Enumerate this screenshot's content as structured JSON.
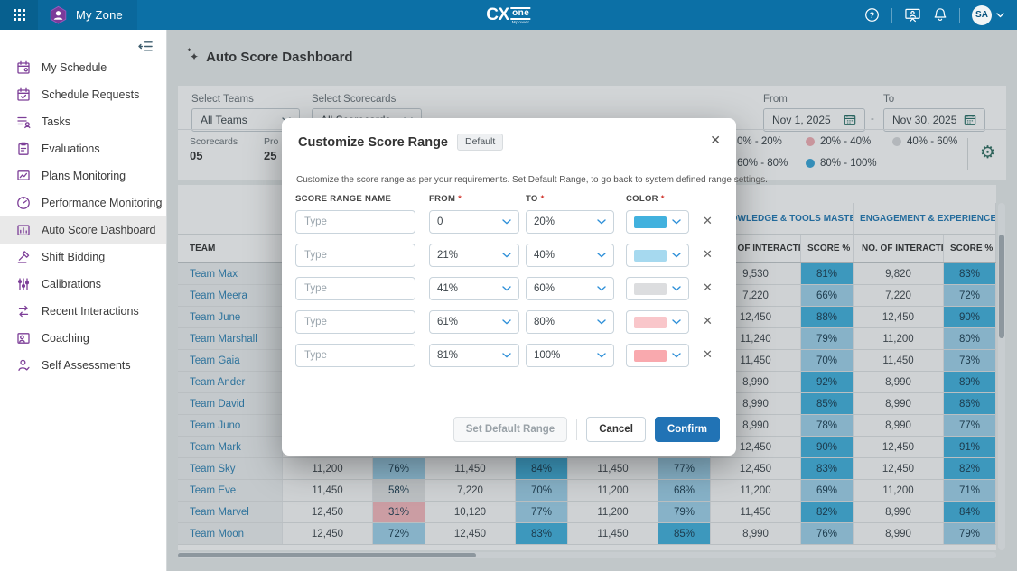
{
  "topbar": {
    "app_name": "My Zone",
    "logo": {
      "cx": "CX",
      "one": "one",
      "sub": "Mpower"
    },
    "avatar_initials": "SA"
  },
  "sidebar": {
    "active_index": 6,
    "items": [
      {
        "id": "my-schedule",
        "icon": "calendar-user-icon",
        "label": "My Schedule"
      },
      {
        "id": "schedule-requests",
        "icon": "calendar-check-icon",
        "label": "Schedule Requests"
      },
      {
        "id": "tasks",
        "icon": "task-list-icon",
        "label": "Tasks"
      },
      {
        "id": "evaluations",
        "icon": "clipboard-user-icon",
        "label": "Evaluations"
      },
      {
        "id": "plans-monitoring",
        "icon": "chart-monitor-icon",
        "label": "Plans Monitoring"
      },
      {
        "id": "performance-monitoring",
        "icon": "gauge-icon",
        "label": "Performance Monitoring"
      },
      {
        "id": "auto-score-dashboard",
        "icon": "dashboard-chart-icon",
        "label": "Auto Score Dashboard"
      },
      {
        "id": "shift-bidding",
        "icon": "gavel-icon",
        "label": "Shift Bidding"
      },
      {
        "id": "calibrations",
        "icon": "sliders-icon",
        "label": "Calibrations"
      },
      {
        "id": "recent-interactions",
        "icon": "interactions-icon",
        "label": "Recent Interactions"
      },
      {
        "id": "coaching",
        "icon": "coaching-icon",
        "label": "Coaching"
      },
      {
        "id": "self-assessments",
        "icon": "self-assessment-icon",
        "label": "Self Assessments"
      }
    ]
  },
  "page": {
    "title": "Auto Score Dashboard"
  },
  "filters": {
    "teams_label": "Select Teams",
    "teams_value": "All Teams",
    "scorecards_label": "Select Scorecards",
    "scorecards_value": "All Scorecards",
    "from_label": "From",
    "from_value": "Nov 1, 2025",
    "to_label": "To",
    "to_value": "Nov 30, 2025",
    "range_separator": "-"
  },
  "summary_cards": [
    {
      "label": "Scorecards",
      "value": "05"
    },
    {
      "label": "Pro",
      "value": "25"
    }
  ],
  "legend": {
    "items": [
      {
        "label": "0% - 20%",
        "color": "#e98a91"
      },
      {
        "label": "20% - 40%",
        "color": "#f2aeb4"
      },
      {
        "label": "40% - 60%",
        "color": "#d8d9db"
      },
      {
        "label": "60% - 80%",
        "color": "#9fd3ec"
      },
      {
        "label": "80% - 100%",
        "color": "#36a4d8"
      }
    ]
  },
  "table": {
    "team_header": "TEAM",
    "groups": [
      "",
      "",
      "",
      "KNOWLEDGE & TOOLS MASTERY...",
      "ENGAGEMENT & EXPERIENCE"
    ],
    "sub_headers": {
      "interactions": "NO. OF INTERACTI...",
      "score": "SCORE %"
    },
    "score_color_rules": [
      {
        "min": 81,
        "color": "#41b1de"
      },
      {
        "min": 60,
        "color": "#9fd3ec"
      },
      {
        "min": 40,
        "color": "#e2e3e5"
      },
      {
        "min": 20,
        "color": "#f6b8bd"
      }
    ],
    "rows": [
      {
        "team": "Team Max",
        "cells": [
          [
            "",
            ""
          ],
          [
            "",
            ""
          ],
          [
            "",
            ""
          ],
          [
            "9,530",
            "81%"
          ],
          [
            "9,820",
            "83%"
          ]
        ]
      },
      {
        "team": "Team Meera",
        "cells": [
          [
            "",
            ""
          ],
          [
            "",
            ""
          ],
          [
            "",
            ""
          ],
          [
            "7,220",
            "66%"
          ],
          [
            "7,220",
            "72%"
          ]
        ]
      },
      {
        "team": "Team June",
        "cells": [
          [
            "",
            ""
          ],
          [
            "",
            ""
          ],
          [
            "",
            ""
          ],
          [
            "12,450",
            "88%"
          ],
          [
            "12,450",
            "90%"
          ]
        ]
      },
      {
        "team": "Team Marshall",
        "cells": [
          [
            "",
            ""
          ],
          [
            "",
            ""
          ],
          [
            "",
            ""
          ],
          [
            "11,240",
            "79%"
          ],
          [
            "11,200",
            "80%"
          ]
        ]
      },
      {
        "team": "Team Gaia",
        "cells": [
          [
            "",
            ""
          ],
          [
            "",
            ""
          ],
          [
            "",
            ""
          ],
          [
            "11,450",
            "70%"
          ],
          [
            "11,450",
            "73%"
          ]
        ]
      },
      {
        "team": "Team Ander",
        "cells": [
          [
            "",
            ""
          ],
          [
            "",
            ""
          ],
          [
            "",
            ""
          ],
          [
            "8,990",
            "92%"
          ],
          [
            "8,990",
            "89%"
          ]
        ]
      },
      {
        "team": "Team David",
        "cells": [
          [
            "",
            ""
          ],
          [
            "",
            ""
          ],
          [
            "",
            ""
          ],
          [
            "8,990",
            "85%"
          ],
          [
            "8,990",
            "86%"
          ]
        ]
      },
      {
        "team": "Team Juno",
        "cells": [
          [
            "",
            ""
          ],
          [
            "",
            ""
          ],
          [
            "",
            ""
          ],
          [
            "8,990",
            "78%"
          ],
          [
            "8,990",
            "77%"
          ]
        ]
      },
      {
        "team": "Team Mark",
        "cells": [
          [
            "",
            ""
          ],
          [
            "",
            ""
          ],
          [
            "",
            ""
          ],
          [
            "12,450",
            "90%"
          ],
          [
            "12,450",
            "91%"
          ]
        ]
      },
      {
        "team": "Team Sky",
        "cells": [
          [
            "11,200",
            "76%"
          ],
          [
            "11,450",
            "84%"
          ],
          [
            "11,450",
            "77%"
          ],
          [
            "12,450",
            "83%"
          ],
          [
            "12,450",
            "82%"
          ]
        ]
      },
      {
        "team": "Team Eve",
        "cells": [
          [
            "11,450",
            "58%"
          ],
          [
            "7,220",
            "70%"
          ],
          [
            "11,200",
            "68%"
          ],
          [
            "11,200",
            "69%"
          ],
          [
            "11,200",
            "71%"
          ]
        ]
      },
      {
        "team": "Team Marvel",
        "cells": [
          [
            "12,450",
            "31%"
          ],
          [
            "10,120",
            "77%"
          ],
          [
            "11,200",
            "79%"
          ],
          [
            "11,450",
            "82%"
          ],
          [
            "8,990",
            "84%"
          ]
        ]
      },
      {
        "team": "Team Moon",
        "cells": [
          [
            "12,450",
            "72%"
          ],
          [
            "12,450",
            "83%"
          ],
          [
            "11,450",
            "85%"
          ],
          [
            "8,990",
            "76%"
          ],
          [
            "8,990",
            "79%"
          ]
        ]
      }
    ]
  },
  "modal": {
    "title": "Customize Score Range",
    "badge": "Default",
    "description": "Customize the score range as per your requirements. Set Default Range, to go back to system defined range settings.",
    "columns": {
      "name": "SCORE RANGE NAME",
      "from": "FROM",
      "to": "TO",
      "color": "COLOR",
      "required_mark": "*"
    },
    "rows": [
      {
        "placeholder": "Type",
        "from": "0",
        "to": "20%",
        "color": "#41b1de"
      },
      {
        "placeholder": "Type",
        "from": "21%",
        "to": "40%",
        "color": "#a6d9ef"
      },
      {
        "placeholder": "Type",
        "from": "41%",
        "to": "60%",
        "color": "#dcdddf"
      },
      {
        "placeholder": "Type",
        "from": "61%",
        "to": "80%",
        "color": "#f9c6ca"
      },
      {
        "placeholder": "Type",
        "from": "81%",
        "to": "100%",
        "color": "#f9a9ae"
      }
    ],
    "buttons": {
      "set_default": "Set Default Range",
      "cancel": "Cancel",
      "confirm": "Confirm"
    }
  }
}
